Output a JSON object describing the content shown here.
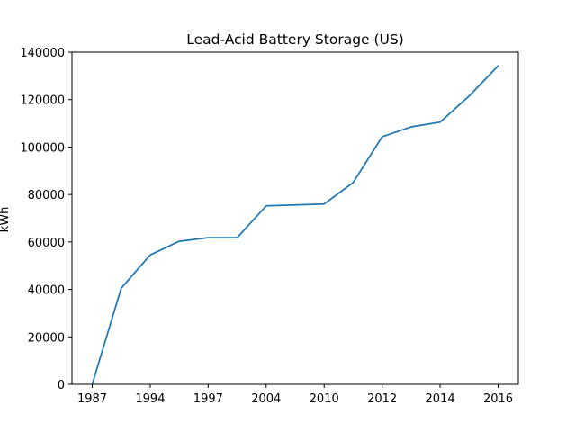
{
  "chart_data": {
    "type": "line",
    "title": "Lead-Acid Battery Storage (US)",
    "xlabel": "",
    "ylabel": "kWh",
    "categories": [
      "1987",
      "",
      "1994",
      "",
      "1997",
      "",
      "2004",
      "",
      "2010",
      "",
      "2012",
      "",
      "2014",
      "",
      "2016"
    ],
    "xticks": [
      "1987",
      "1994",
      "1997",
      "2004",
      "2010",
      "2012",
      "2014",
      "2016"
    ],
    "values": [
      0,
      40500,
      54500,
      60300,
      61800,
      61800,
      75200,
      75600,
      76000,
      85000,
      104300,
      108500,
      110500,
      121500,
      134200
    ],
    "yticks": [
      0,
      20000,
      40000,
      60000,
      80000,
      100000,
      120000,
      140000
    ],
    "ylim": [
      0,
      140000
    ],
    "grid": false,
    "line_color": "#1f77b4"
  }
}
